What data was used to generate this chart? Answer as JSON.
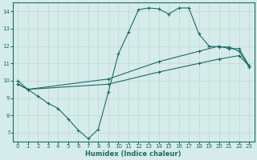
{
  "bg_color": "#d6ecea",
  "line_color": "#1a6b6b",
  "grid_color": "#bcd8d4",
  "xlabel": "Humidex (Indice chaleur)",
  "xlim": [
    -0.5,
    23.5
  ],
  "ylim": [
    6.5,
    14.5
  ],
  "xticks": [
    0,
    1,
    2,
    3,
    4,
    5,
    6,
    7,
    8,
    9,
    10,
    11,
    12,
    13,
    14,
    15,
    16,
    17,
    18,
    19,
    20,
    21,
    22,
    23
  ],
  "yticks": [
    7,
    8,
    9,
    10,
    11,
    12,
    13,
    14
  ],
  "line1_x": [
    0,
    1,
    2,
    3,
    4,
    5,
    6,
    7,
    8,
    9,
    10,
    11,
    12,
    13,
    14,
    15,
    16,
    17,
    18,
    19,
    20,
    21,
    22,
    23
  ],
  "line1_y": [
    10.0,
    9.5,
    9.1,
    8.7,
    8.4,
    7.8,
    7.15,
    6.65,
    7.2,
    9.35,
    11.55,
    12.8,
    14.1,
    14.2,
    14.15,
    13.85,
    14.2,
    14.2,
    12.7,
    12.0,
    11.95,
    11.95,
    11.7,
    10.8
  ],
  "line2_x": [
    0,
    1,
    9,
    14,
    18,
    20,
    21,
    22,
    23
  ],
  "line2_y": [
    9.8,
    9.5,
    10.1,
    11.1,
    11.7,
    12.0,
    11.85,
    11.85,
    10.85
  ],
  "line3_x": [
    0,
    1,
    9,
    14,
    18,
    20,
    22,
    23
  ],
  "line3_y": [
    9.8,
    9.5,
    9.8,
    10.5,
    11.0,
    11.25,
    11.45,
    10.85
  ]
}
